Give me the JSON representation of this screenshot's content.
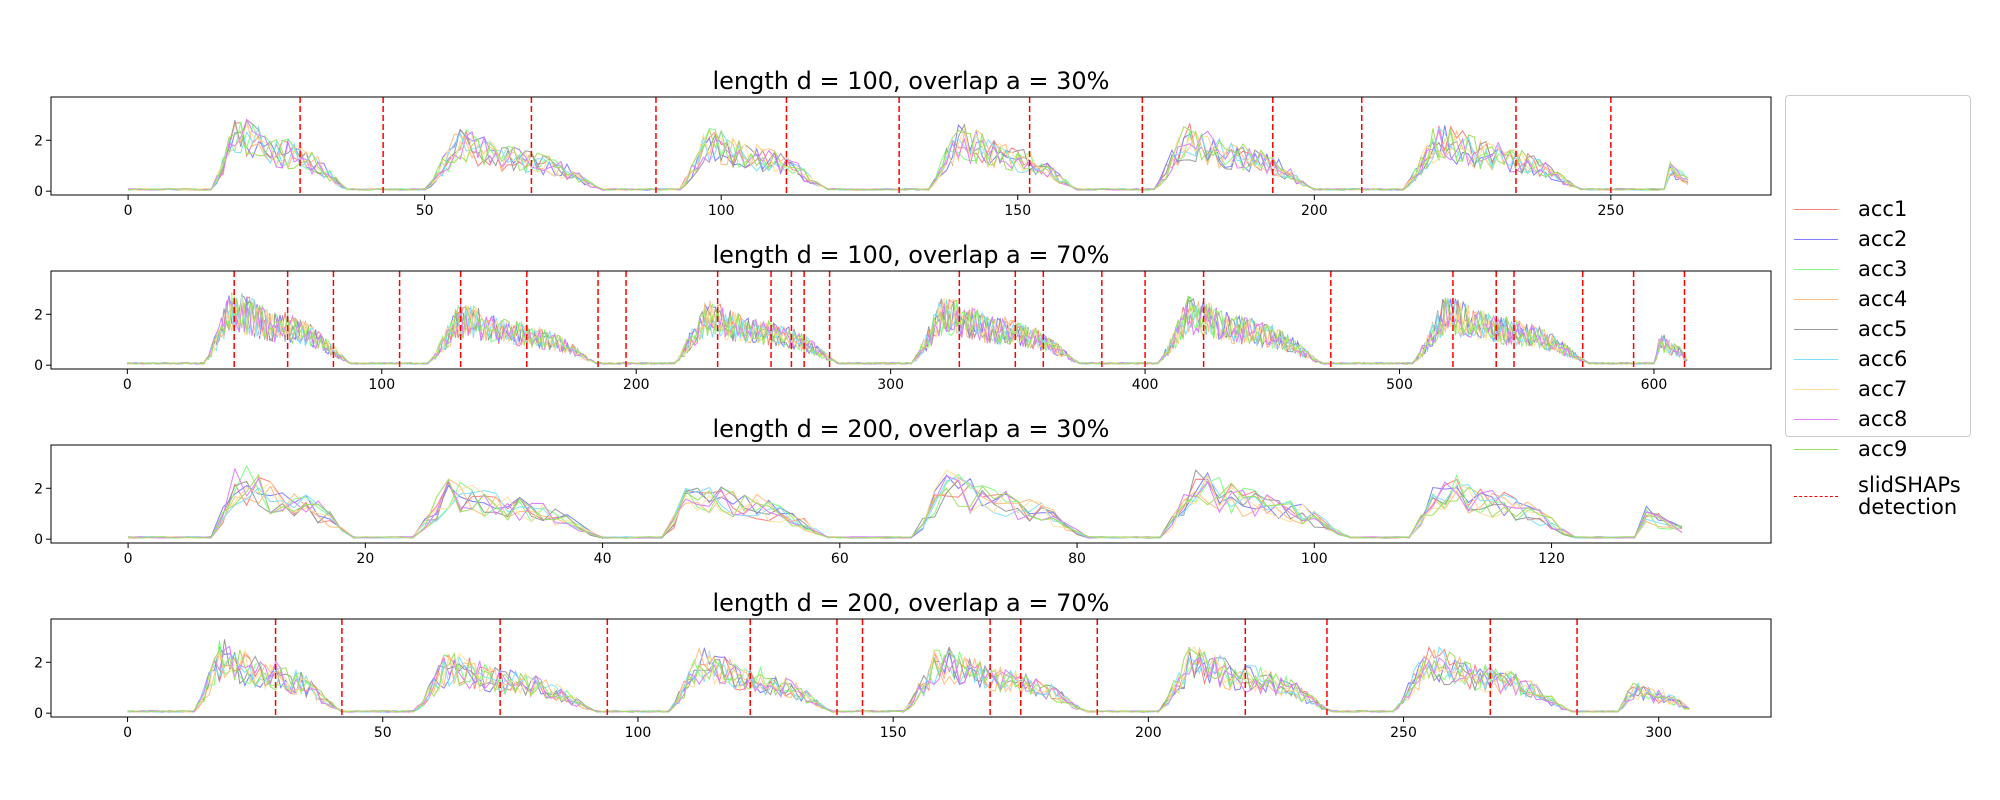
{
  "chart_data": [
    {
      "type": "line",
      "title": "length d = 100, overlap a = 30%",
      "xlim": [
        -13,
        277
      ],
      "ylim": [
        -0.15,
        3.7
      ],
      "xticks": [
        0,
        50,
        100,
        150,
        200,
        250
      ],
      "yticks": [
        0,
        2
      ],
      "n_points": 264,
      "detections": [
        29,
        43,
        68,
        89,
        111,
        130,
        152,
        171,
        193,
        208,
        234,
        250
      ],
      "activity": [
        {
          "start": 14,
          "end": 37,
          "peak": 2.3
        },
        {
          "start": 50,
          "end": 80,
          "peak": 1.9
        },
        {
          "start": 93,
          "end": 118,
          "peak": 2.0
        },
        {
          "start": 135,
          "end": 160,
          "peak": 2.1
        },
        {
          "start": 173,
          "end": 200,
          "peak": 2.1
        },
        {
          "start": 215,
          "end": 245,
          "peak": 2.1
        },
        {
          "start": 259,
          "end": 264,
          "peak": 1.0
        }
      ]
    },
    {
      "type": "line",
      "title": "length d = 100, overlap a = 70%",
      "xlim": [
        -30,
        646
      ],
      "ylim": [
        -0.15,
        3.7
      ],
      "xticks": [
        0,
        100,
        200,
        300,
        400,
        500,
        600
      ],
      "yticks": [
        0,
        2
      ],
      "n_points": 614,
      "detections": [
        42,
        63,
        81,
        107,
        131,
        157,
        185,
        196,
        232,
        253,
        261,
        266,
        276,
        327,
        349,
        360,
        383,
        400,
        423,
        473,
        521,
        538,
        545,
        572,
        592,
        612
      ],
      "activity": [
        {
          "start": 30,
          "end": 88,
          "peak": 2.3
        },
        {
          "start": 118,
          "end": 185,
          "peak": 1.9
        },
        {
          "start": 215,
          "end": 280,
          "peak": 2.0
        },
        {
          "start": 308,
          "end": 375,
          "peak": 2.1
        },
        {
          "start": 405,
          "end": 470,
          "peak": 2.1
        },
        {
          "start": 505,
          "end": 575,
          "peak": 2.1
        },
        {
          "start": 600,
          "end": 614,
          "peak": 1.0
        }
      ]
    },
    {
      "type": "line",
      "title": "length d = 200, overlap a = 30%",
      "xlim": [
        -6.5,
        138.5
      ],
      "ylim": [
        -0.15,
        3.7
      ],
      "xticks": [
        0,
        20,
        40,
        60,
        80,
        100,
        120
      ],
      "yticks": [
        0,
        2
      ],
      "n_points": 132,
      "detections": [],
      "activity": [
        {
          "start": 7,
          "end": 19,
          "peak": 2.3
        },
        {
          "start": 24,
          "end": 40,
          "peak": 1.9
        },
        {
          "start": 45,
          "end": 59,
          "peak": 2.0
        },
        {
          "start": 66,
          "end": 81,
          "peak": 2.1
        },
        {
          "start": 87,
          "end": 103,
          "peak": 2.1
        },
        {
          "start": 108,
          "end": 122,
          "peak": 2.1
        },
        {
          "start": 127,
          "end": 132,
          "peak": 1.0
        }
      ]
    },
    {
      "type": "line",
      "title": "length d = 200, overlap a = 70%",
      "xlim": [
        -15,
        322
      ],
      "ylim": [
        -0.15,
        3.7
      ],
      "xticks": [
        0,
        50,
        100,
        150,
        200,
        250,
        300
      ],
      "yticks": [
        0,
        2
      ],
      "n_points": 307,
      "detections": [
        29,
        42,
        73,
        94,
        122,
        139,
        144,
        169,
        175,
        190,
        219,
        235,
        267,
        284
      ],
      "activity": [
        {
          "start": 13,
          "end": 42,
          "peak": 2.3
        },
        {
          "start": 56,
          "end": 92,
          "peak": 1.9
        },
        {
          "start": 106,
          "end": 138,
          "peak": 2.0
        },
        {
          "start": 152,
          "end": 188,
          "peak": 2.1
        },
        {
          "start": 202,
          "end": 236,
          "peak": 2.1
        },
        {
          "start": 248,
          "end": 283,
          "peak": 2.1
        },
        {
          "start": 292,
          "end": 307,
          "peak": 1.0
        }
      ]
    }
  ],
  "series": [
    {
      "name": "acc1",
      "color": "#ff7f7f"
    },
    {
      "name": "acc2",
      "color": "#7f7fff"
    },
    {
      "name": "acc3",
      "color": "#7fff7f"
    },
    {
      "name": "acc4",
      "color": "#ffbf7f"
    },
    {
      "name": "acc5",
      "color": "#9a9a9a"
    },
    {
      "name": "acc6",
      "color": "#7fdfff"
    },
    {
      "name": "acc7",
      "color": "#ffe0a0"
    },
    {
      "name": "acc8",
      "color": "#df7fff"
    },
    {
      "name": "acc9",
      "color": "#9fdf5f"
    }
  ],
  "detection_series": {
    "name_line1": "slidSHAPs",
    "name_line2": "detection",
    "color": "#ff0000"
  },
  "legend": {
    "position": "upper right, outside plots"
  }
}
